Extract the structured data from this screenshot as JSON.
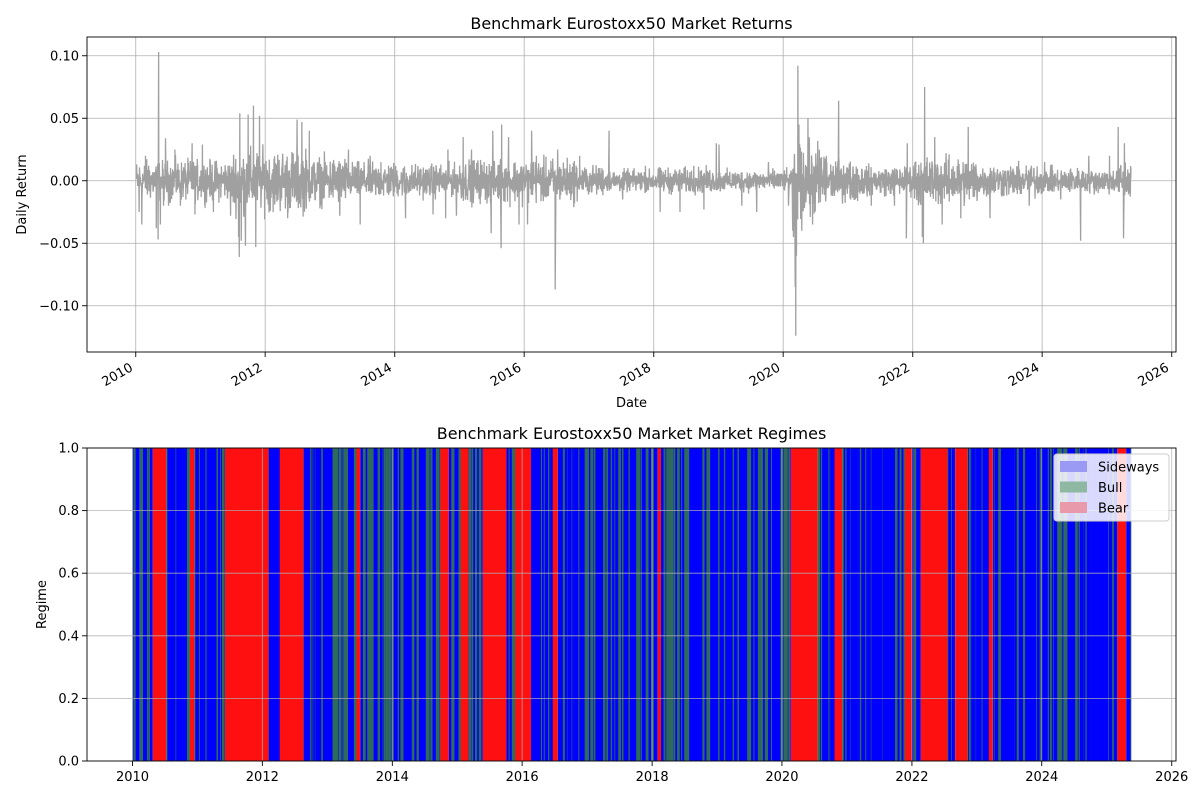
{
  "chart_data": [
    {
      "type": "line",
      "title": "Benchmark Eurostoxx50 Market Returns",
      "xlabel": "Date",
      "ylabel": "Daily Return",
      "xlim": [
        "2009-04-01",
        "2026-01-25"
      ],
      "ylim": [
        -0.137,
        0.115
      ],
      "grid": true,
      "x_ticks": [
        "2010",
        "2012",
        "2014",
        "2016",
        "2018",
        "2020",
        "2022",
        "2024",
        "2026"
      ],
      "y_ticks": [
        "0.10",
        "0.05",
        "0.00",
        "−0.05",
        "−0.10"
      ],
      "y_tick_values": [
        0.1,
        0.05,
        0.0,
        -0.05,
        -0.1
      ],
      "series": [
        {
          "color": "#a0a0a0",
          "date_range": [
            "2010-01-04",
            "2025-05-16"
          ],
          "points": [
            [
              "2010-01-04",
              0.005
            ],
            [
              "2010-01-20",
              -0.025
            ],
            [
              "2010-02-04",
              -0.035
            ],
            [
              "2010-02-25",
              0.02
            ],
            [
              "2010-03-15",
              0.012
            ],
            [
              "2010-04-27",
              -0.038
            ],
            [
              "2010-05-07",
              -0.047
            ],
            [
              "2010-05-10",
              0.103
            ],
            [
              "2010-05-20",
              -0.035
            ],
            [
              "2010-06-07",
              -0.02
            ],
            [
              "2010-06-18",
              0.034
            ],
            [
              "2010-07-05",
              -0.02
            ],
            [
              "2010-08-10",
              0.025
            ],
            [
              "2010-09-10",
              -0.02
            ],
            [
              "2010-11-15",
              0.03
            ],
            [
              "2010-12-01",
              -0.027
            ],
            [
              "2011-01-12",
              0.029
            ],
            [
              "2011-03-15",
              -0.025
            ],
            [
              "2011-05-01",
              0.02
            ],
            [
              "2011-06-20",
              -0.028
            ],
            [
              "2011-08-04",
              -0.045
            ],
            [
              "2011-08-08",
              -0.061
            ],
            [
              "2011-08-11",
              0.054
            ],
            [
              "2011-08-19",
              -0.048
            ],
            [
              "2011-09-12",
              -0.052
            ],
            [
              "2011-09-27",
              0.053
            ],
            [
              "2011-10-27",
              0.06
            ],
            [
              "2011-11-09",
              -0.053
            ],
            [
              "2011-11-30",
              0.052
            ],
            [
              "2012-01-15",
              0.02
            ],
            [
              "2012-03-10",
              -0.025
            ],
            [
              "2012-05-07",
              -0.03
            ],
            [
              "2012-06-29",
              0.049
            ],
            [
              "2012-07-26",
              0.047
            ],
            [
              "2012-09-06",
              0.04
            ],
            [
              "2012-11-10",
              -0.02
            ],
            [
              "2013-02-25",
              -0.028
            ],
            [
              "2013-04-15",
              0.025
            ],
            [
              "2013-06-20",
              -0.035
            ],
            [
              "2013-08-15",
              0.02
            ],
            [
              "2013-10-15",
              0.015
            ],
            [
              "2014-01-25",
              -0.03
            ],
            [
              "2014-03-03",
              -0.03
            ],
            [
              "2014-06-01",
              0.015
            ],
            [
              "2014-08-05",
              -0.027
            ],
            [
              "2014-10-15",
              -0.03
            ],
            [
              "2014-10-28",
              0.025
            ],
            [
              "2014-12-15",
              -0.028
            ],
            [
              "2015-01-22",
              0.035
            ],
            [
              "2015-03-10",
              0.025
            ],
            [
              "2015-06-29",
              -0.042
            ],
            [
              "2015-07-08",
              0.04
            ],
            [
              "2015-08-24",
              -0.054
            ],
            [
              "2015-08-27",
              0.045
            ],
            [
              "2015-10-05",
              0.035
            ],
            [
              "2015-12-03",
              -0.035
            ],
            [
              "2016-01-20",
              -0.035
            ],
            [
              "2016-02-12",
              0.04
            ],
            [
              "2016-03-10",
              0.02
            ],
            [
              "2016-06-24",
              -0.087
            ],
            [
              "2016-06-27",
              -0.03
            ],
            [
              "2016-07-08",
              0.025
            ],
            [
              "2016-10-15",
              0.015
            ],
            [
              "2016-11-09",
              0.02
            ],
            [
              "2017-03-15",
              0.01
            ],
            [
              "2017-04-24",
              0.04
            ],
            [
              "2017-07-10",
              -0.015
            ],
            [
              "2017-11-15",
              0.012
            ],
            [
              "2018-02-06",
              -0.025
            ],
            [
              "2018-05-29",
              -0.025
            ],
            [
              "2018-08-15",
              0.012
            ],
            [
              "2018-10-11",
              -0.023
            ],
            [
              "2018-12-20",
              0.03
            ],
            [
              "2019-01-04",
              0.029
            ],
            [
              "2019-05-13",
              -0.02
            ],
            [
              "2019-08-05",
              -0.025
            ],
            [
              "2019-10-10",
              0.015
            ],
            [
              "2020-01-31",
              -0.02
            ],
            [
              "2020-02-24",
              -0.04
            ],
            [
              "2020-02-28",
              -0.045
            ],
            [
              "2020-03-09",
              -0.085
            ],
            [
              "2020-03-12",
              -0.124
            ],
            [
              "2020-03-16",
              -0.06
            ],
            [
              "2020-03-24",
              0.092
            ],
            [
              "2020-03-30",
              0.045
            ],
            [
              "2020-04-15",
              -0.04
            ],
            [
              "2020-05-20",
              0.05
            ],
            [
              "2020-06-15",
              -0.035
            ],
            [
              "2020-09-01",
              0.02
            ],
            [
              "2020-11-09",
              0.064
            ],
            [
              "2021-01-15",
              -0.015
            ],
            [
              "2021-05-12",
              -0.02
            ],
            [
              "2021-09-20",
              -0.02
            ],
            [
              "2021-11-26",
              -0.046
            ],
            [
              "2021-12-01",
              0.03
            ],
            [
              "2022-02-24",
              -0.045
            ],
            [
              "2022-03-02",
              -0.05
            ],
            [
              "2022-03-09",
              0.075
            ],
            [
              "2022-05-05",
              0.035
            ],
            [
              "2022-06-16",
              -0.035
            ],
            [
              "2022-09-29",
              -0.03
            ],
            [
              "2022-11-10",
              0.043
            ],
            [
              "2023-03-13",
              -0.03
            ],
            [
              "2023-06-10",
              0.02
            ],
            [
              "2023-10-20",
              -0.02
            ],
            [
              "2024-01-15",
              0.015
            ],
            [
              "2024-04-15",
              -0.015
            ],
            [
              "2024-08-05",
              -0.048
            ],
            [
              "2024-09-20",
              0.02
            ],
            [
              "2025-01-15",
              0.02
            ],
            [
              "2025-03-05",
              0.043
            ],
            [
              "2025-04-04",
              -0.046
            ],
            [
              "2025-04-09",
              0.03
            ],
            [
              "2025-05-16",
              0.01
            ]
          ]
        }
      ]
    },
    {
      "type": "area",
      "title": "Benchmark Eurostoxx50 Market Market Regimes",
      "xlabel": "",
      "ylabel": "Regime",
      "xlim": [
        "2009-04-20",
        "2026-01-25"
      ],
      "ylim": [
        0,
        1
      ],
      "grid": true,
      "x_ticks": [
        "2010",
        "2012",
        "2014",
        "2016",
        "2018",
        "2020",
        "2022",
        "2024",
        "2026"
      ],
      "y_ticks": [
        "0.0",
        "0.2",
        "0.4",
        "0.6",
        "0.8",
        "1.0"
      ],
      "y_tick_values": [
        0.0,
        0.2,
        0.4,
        0.6,
        0.8,
        1.0
      ],
      "legend": {
        "placement": "top-right",
        "entries": [
          {
            "name": "Sideways",
            "color": "#9a9af5"
          },
          {
            "name": "Bull",
            "color": "#8fb8a3"
          },
          {
            "name": "Bear",
            "color": "#e89aab"
          }
        ]
      },
      "regime_colors": {
        "Sideways": "#0000ff",
        "Bull": "#2e6b5c",
        "Bear": "#ff1010"
      },
      "segments": [
        {
          "start": "2010-01-01",
          "end": "2010-02-10",
          "regime": "Sideways"
        },
        {
          "start": "2010-02-10",
          "end": "2010-03-20",
          "regime": "Bull"
        },
        {
          "start": "2010-03-20",
          "end": "2010-04-25",
          "regime": "Sideways"
        },
        {
          "start": "2010-04-25",
          "end": "2010-07-10",
          "regime": "Bear"
        },
        {
          "start": "2010-07-10",
          "end": "2010-11-20",
          "regime": "Bull"
        },
        {
          "start": "2010-11-20",
          "end": "2010-12-15",
          "regime": "Bear"
        },
        {
          "start": "2010-12-15",
          "end": "2011-03-10",
          "regime": "Bull"
        },
        {
          "start": "2011-03-10",
          "end": "2011-06-05",
          "regime": "Sideways"
        },
        {
          "start": "2011-06-05",
          "end": "2012-02-05",
          "regime": "Bear"
        },
        {
          "start": "2012-02-05",
          "end": "2012-04-05",
          "regime": "Bull"
        },
        {
          "start": "2012-04-05",
          "end": "2012-08-20",
          "regime": "Bear"
        },
        {
          "start": "2012-08-20",
          "end": "2013-01-20",
          "regime": "Bull"
        },
        {
          "start": "2013-01-20",
          "end": "2013-06-10",
          "regime": "Sideways"
        },
        {
          "start": "2013-06-10",
          "end": "2013-07-05",
          "regime": "Bear"
        },
        {
          "start": "2013-07-05",
          "end": "2014-09-25",
          "regime": "Sideways"
        },
        {
          "start": "2014-09-25",
          "end": "2014-11-15",
          "regime": "Bear"
        },
        {
          "start": "2014-11-15",
          "end": "2015-01-10",
          "regime": "Sideways"
        },
        {
          "start": "2015-01-10",
          "end": "2015-03-05",
          "regime": "Bear"
        },
        {
          "start": "2015-03-05",
          "end": "2015-05-25",
          "regime": "Sideways"
        },
        {
          "start": "2015-05-25",
          "end": "2015-10-05",
          "regime": "Bear"
        },
        {
          "start": "2015-10-05",
          "end": "2015-11-20",
          "regime": "Sideways"
        },
        {
          "start": "2015-11-20",
          "end": "2016-02-20",
          "regime": "Bear"
        },
        {
          "start": "2016-02-20",
          "end": "2016-06-10",
          "regime": "Bull"
        },
        {
          "start": "2016-06-10",
          "end": "2016-07-20",
          "regime": "Bear"
        },
        {
          "start": "2016-07-20",
          "end": "2016-10-20",
          "regime": "Bull"
        },
        {
          "start": "2016-10-20",
          "end": "2018-02-01",
          "regime": "Sideways"
        },
        {
          "start": "2018-02-01",
          "end": "2018-02-20",
          "regime": "Bear"
        },
        {
          "start": "2018-02-20",
          "end": "2018-11-20",
          "regime": "Sideways"
        },
        {
          "start": "2018-11-20",
          "end": "2019-08-01",
          "regime": "Bull"
        },
        {
          "start": "2019-08-01",
          "end": "2020-02-20",
          "regime": "Sideways"
        },
        {
          "start": "2020-02-20",
          "end": "2020-07-20",
          "regime": "Bear"
        },
        {
          "start": "2020-07-20",
          "end": "2020-10-20",
          "regime": "Bull"
        },
        {
          "start": "2020-10-20",
          "end": "2020-12-05",
          "regime": "Bear"
        },
        {
          "start": "2020-12-05",
          "end": "2021-09-20",
          "regime": "Bull"
        },
        {
          "start": "2021-09-20",
          "end": "2021-11-20",
          "regime": "Sideways"
        },
        {
          "start": "2021-11-20",
          "end": "2022-01-01",
          "regime": "Bear"
        },
        {
          "start": "2022-01-01",
          "end": "2022-02-20",
          "regime": "Sideways"
        },
        {
          "start": "2022-02-20",
          "end": "2022-07-20",
          "regime": "Bear"
        },
        {
          "start": "2022-07-20",
          "end": "2022-09-01",
          "regime": "Bull"
        },
        {
          "start": "2022-09-01",
          "end": "2022-11-10",
          "regime": "Bear"
        },
        {
          "start": "2022-11-10",
          "end": "2023-03-05",
          "regime": "Bull"
        },
        {
          "start": "2023-03-05",
          "end": "2023-04-01",
          "regime": "Bear"
        },
        {
          "start": "2023-04-01",
          "end": "2023-12-01",
          "regime": "Bull"
        },
        {
          "start": "2023-12-01",
          "end": "2024-08-01",
          "regime": "Sideways"
        },
        {
          "start": "2024-08-01",
          "end": "2025-03-01",
          "regime": "Bull"
        },
        {
          "start": "2025-03-01",
          "end": "2025-04-20",
          "regime": "Bear"
        },
        {
          "start": "2025-04-20",
          "end": "2025-05-16",
          "regime": "Sideways"
        }
      ]
    }
  ]
}
